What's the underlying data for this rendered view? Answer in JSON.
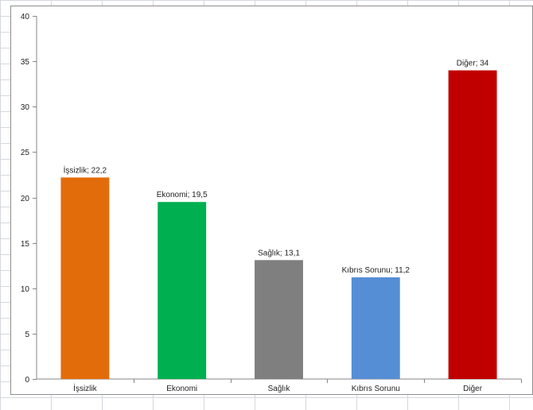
{
  "chart_data": {
    "type": "bar",
    "categories": [
      "İşsizlik",
      "Ekonomi",
      "Sağlık",
      "Kıbrıs Sorunu",
      "Diğer"
    ],
    "values": [
      22.2,
      19.5,
      13.1,
      11.2,
      34
    ],
    "data_labels": [
      "İşsizlik; 22,2",
      "Ekonomi; 19,5",
      "Sağlık; 13,1",
      "Kıbrıs Sorunu; 11,2",
      "Diğer; 34"
    ],
    "colors": [
      "#e36c0a",
      "#00b050",
      "#7f7f7f",
      "#558ed5",
      "#c00000"
    ],
    "title": "",
    "xlabel": "",
    "ylabel": "",
    "ylim": [
      0,
      40
    ],
    "yticks": [
      0,
      5,
      10,
      15,
      20,
      25,
      30,
      35,
      40
    ],
    "grid": false,
    "legend": "none"
  }
}
